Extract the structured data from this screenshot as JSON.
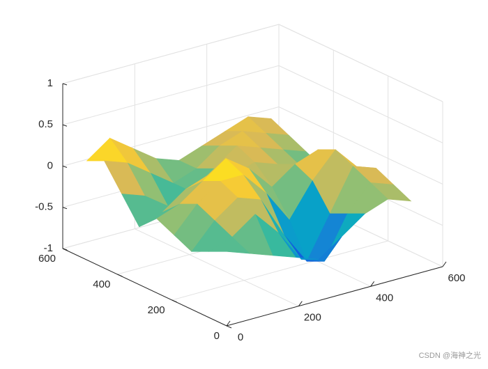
{
  "chart_data": {
    "type": "surface",
    "colormap": "parula",
    "x": [
      0,
      64,
      128,
      192,
      256,
      320,
      384,
      448,
      512
    ],
    "y": [
      0,
      64,
      128,
      192,
      256,
      320,
      384,
      448,
      512
    ],
    "z": [
      [
        -0.1,
        -0.2,
        -0.3,
        -0.4,
        -0.5,
        -0.3,
        -0.1,
        0.0,
        -0.1
      ],
      [
        -0.2,
        -0.1,
        0.1,
        -0.2,
        -0.6,
        -0.7,
        -0.2,
        0.1,
        0.0
      ],
      [
        -0.3,
        0.0,
        0.2,
        0.1,
        -0.4,
        -0.8,
        -0.3,
        0.2,
        0.1
      ],
      [
        -0.2,
        0.1,
        0.3,
        0.3,
        0.0,
        -0.4,
        0.0,
        0.3,
        0.0
      ],
      [
        -0.1,
        0.0,
        0.2,
        0.4,
        0.2,
        -0.1,
        0.1,
        0.2,
        -0.1
      ],
      [
        -0.3,
        -0.2,
        0.0,
        0.1,
        0.0,
        0.1,
        0.0,
        -0.1,
        -0.2
      ],
      [
        0.0,
        -0.1,
        -0.3,
        -0.2,
        0.0,
        0.2,
        0.1,
        0.0,
        -0.1
      ],
      [
        0.3,
        0.2,
        0.0,
        -0.2,
        -0.1,
        0.1,
        0.2,
        0.1,
        0.0
      ],
      [
        0.2,
        0.4,
        0.2,
        0.0,
        -0.1,
        0.0,
        0.1,
        0.2,
        0.1
      ]
    ],
    "xlim": [
      0,
      600
    ],
    "xticks": [
      0,
      200,
      400,
      600
    ],
    "ylim": [
      0,
      600
    ],
    "yticks": [
      0,
      200,
      400,
      600
    ],
    "zlim": [
      -1,
      1
    ],
    "zticks": [
      -1,
      -0.5,
      0,
      0.5,
      1
    ],
    "grid": true,
    "watermark": "CSDN @海神之光"
  }
}
